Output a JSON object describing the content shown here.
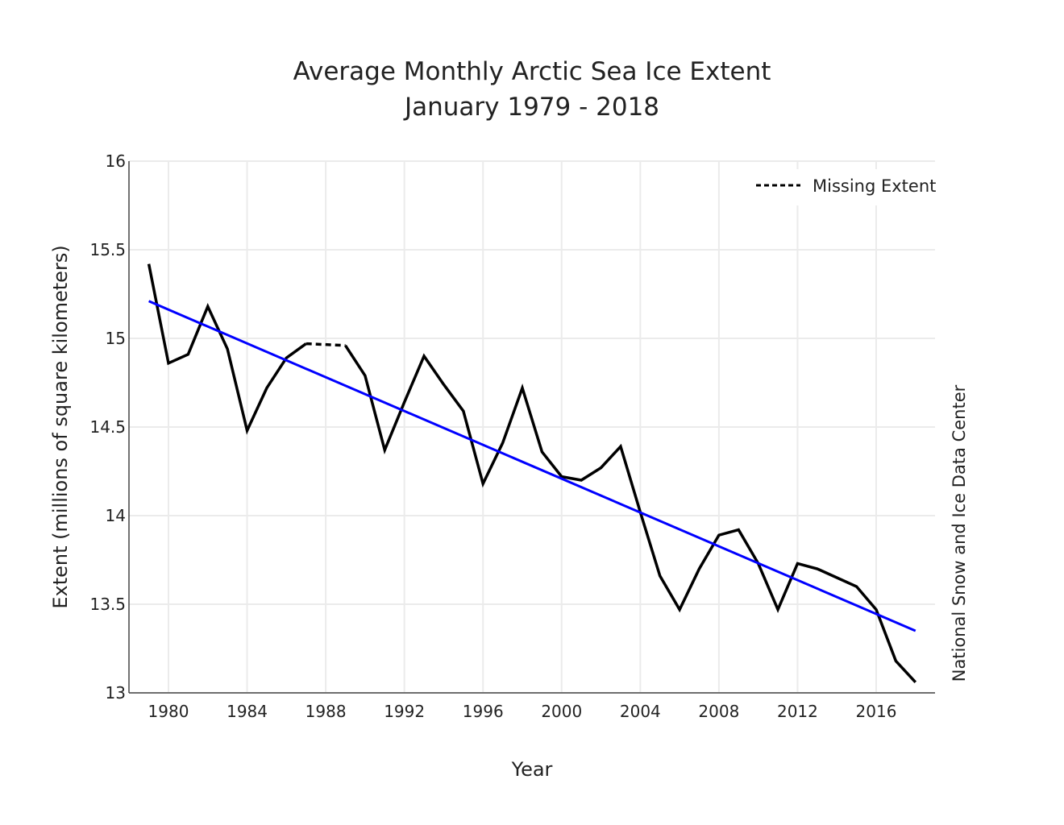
{
  "chart_data": {
    "type": "line",
    "title": "Average Monthly Arctic Sea Ice Extent",
    "subtitle": "January 1979 - 2018",
    "xlabel": "Year",
    "ylabel": "Extent (millions of square kilometers)",
    "credit": "National Snow and Ice Data Center",
    "xlim": [
      1978,
      2019
    ],
    "ylim": [
      13,
      16
    ],
    "xticks": [
      1980,
      1984,
      1988,
      1992,
      1996,
      2000,
      2004,
      2008,
      2012,
      2016
    ],
    "yticks": [
      13,
      13.5,
      14,
      14.5,
      15,
      15.5,
      16
    ],
    "ytick_labels": [
      "13",
      "13.5",
      "14",
      "14.5",
      "15",
      "15.5",
      "16"
    ],
    "grid": true,
    "legend_position": "top-right",
    "series": [
      {
        "color": "#000000",
        "x": [
          1979,
          1980,
          1981,
          1982,
          1983,
          1984,
          1985,
          1986,
          1987,
          1988,
          1989,
          1990,
          1991,
          1992,
          1993,
          1994,
          1995,
          1996,
          1997,
          1998,
          1999,
          2000,
          2001,
          2002,
          2003,
          2004,
          2005,
          2006,
          2007,
          2008,
          2009,
          2010,
          2011,
          2012,
          2013,
          2014,
          2015,
          2016,
          2017,
          2018
        ],
        "y": [
          15.42,
          14.86,
          14.91,
          15.18,
          14.94,
          14.48,
          14.72,
          14.89,
          14.97,
          null,
          14.96,
          14.79,
          14.37,
          14.64,
          14.9,
          14.74,
          14.59,
          14.18,
          14.41,
          14.72,
          14.36,
          14.22,
          14.2,
          14.27,
          14.39,
          14.02,
          13.66,
          13.47,
          13.7,
          13.89,
          13.92,
          13.73,
          13.47,
          13.73,
          13.7,
          13.65,
          13.6,
          13.47,
          13.18,
          13.06
        ]
      },
      {
        "name": "Missing Extent",
        "style": "dotted",
        "color": "#000000",
        "x": [
          1987,
          1989
        ],
        "y": [
          14.97,
          14.96
        ]
      },
      {
        "style": "trend",
        "color": "#0000ff",
        "x": [
          1979,
          2018
        ],
        "y": [
          15.21,
          13.35
        ]
      }
    ]
  }
}
